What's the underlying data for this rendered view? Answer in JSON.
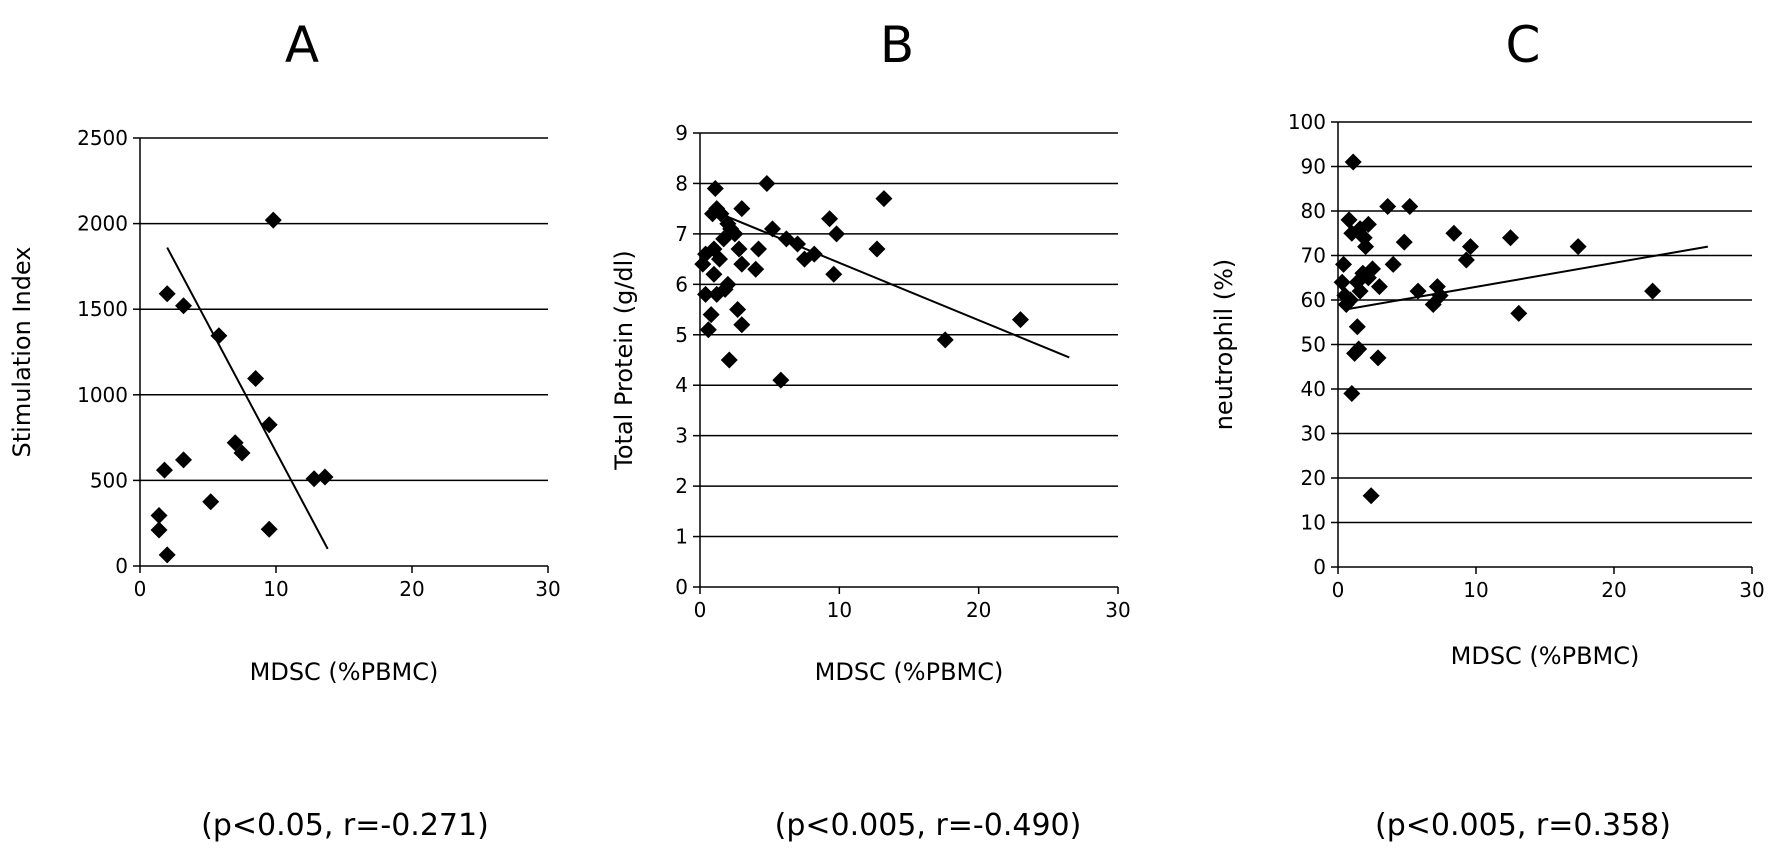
{
  "chart_data": [
    {
      "type": "scatter",
      "panel_label": "A",
      "xlabel": "MDSC (%PBMC)",
      "ylabel": "Stimulation Index",
      "xlim": [
        0,
        30
      ],
      "ylim": [
        0,
        2500
      ],
      "xticks": [
        0,
        10,
        20,
        30
      ],
      "yticks": [
        0,
        500,
        1000,
        1500,
        2000,
        2500
      ],
      "grid": "horizontal",
      "legend": "none",
      "marker": "diamond",
      "stat": "(p<0.05, r=-0.271)",
      "points": [
        {
          "x": 9.8,
          "y": 2020
        },
        {
          "x": 2.0,
          "y": 1590
        },
        {
          "x": 3.2,
          "y": 1520
        },
        {
          "x": 5.8,
          "y": 1345
        },
        {
          "x": 8.5,
          "y": 1095
        },
        {
          "x": 9.5,
          "y": 825
        },
        {
          "x": 7.0,
          "y": 720
        },
        {
          "x": 7.5,
          "y": 660
        },
        {
          "x": 3.2,
          "y": 620
        },
        {
          "x": 1.8,
          "y": 560
        },
        {
          "x": 12.8,
          "y": 510
        },
        {
          "x": 13.6,
          "y": 520
        },
        {
          "x": 5.2,
          "y": 375
        },
        {
          "x": 1.4,
          "y": 295
        },
        {
          "x": 9.5,
          "y": 215
        },
        {
          "x": 1.4,
          "y": 210
        },
        {
          "x": 2.0,
          "y": 65
        }
      ],
      "trendline": {
        "x": [
          2.0,
          13.8
        ],
        "y": [
          1860,
          100
        ]
      }
    },
    {
      "type": "scatter",
      "panel_label": "B",
      "xlabel": "MDSC (%PBMC)",
      "ylabel": "Total Protein (g/dl)",
      "xlim": [
        0,
        30
      ],
      "ylim": [
        0,
        9
      ],
      "xticks": [
        0,
        10,
        20,
        30
      ],
      "yticks": [
        0,
        1,
        2,
        3,
        4,
        5,
        6,
        7,
        8,
        9
      ],
      "grid": "horizontal",
      "legend": "none",
      "marker": "diamond",
      "stat": "(p<0.005, r=-0.490)",
      "points": [
        {
          "x": 4.8,
          "y": 8.0
        },
        {
          "x": 1.1,
          "y": 7.9
        },
        {
          "x": 13.2,
          "y": 7.7
        },
        {
          "x": 3.0,
          "y": 7.5
        },
        {
          "x": 1.2,
          "y": 7.5
        },
        {
          "x": 0.9,
          "y": 7.4
        },
        {
          "x": 1.5,
          "y": 7.4
        },
        {
          "x": 9.3,
          "y": 7.3
        },
        {
          "x": 2.0,
          "y": 7.2
        },
        {
          "x": 5.2,
          "y": 7.1
        },
        {
          "x": 2.2,
          "y": 7.1
        },
        {
          "x": 9.8,
          "y": 7.0
        },
        {
          "x": 2.5,
          "y": 7.0
        },
        {
          "x": 1.7,
          "y": 6.9
        },
        {
          "x": 6.2,
          "y": 6.9
        },
        {
          "x": 7.0,
          "y": 6.8
        },
        {
          "x": 4.2,
          "y": 6.7
        },
        {
          "x": 12.7,
          "y": 6.7
        },
        {
          "x": 1.0,
          "y": 6.7
        },
        {
          "x": 2.8,
          "y": 6.7
        },
        {
          "x": 8.2,
          "y": 6.6
        },
        {
          "x": 0.4,
          "y": 6.6
        },
        {
          "x": 7.5,
          "y": 6.5
        },
        {
          "x": 1.4,
          "y": 6.5
        },
        {
          "x": 0.2,
          "y": 6.4
        },
        {
          "x": 3.0,
          "y": 6.4
        },
        {
          "x": 4.0,
          "y": 6.3
        },
        {
          "x": 1.0,
          "y": 6.2
        },
        {
          "x": 9.6,
          "y": 6.2
        },
        {
          "x": 2.0,
          "y": 6.0
        },
        {
          "x": 1.8,
          "y": 5.9
        },
        {
          "x": 1.2,
          "y": 5.8
        },
        {
          "x": 0.4,
          "y": 5.8
        },
        {
          "x": 2.7,
          "y": 5.5
        },
        {
          "x": 0.8,
          "y": 5.4
        },
        {
          "x": 23.0,
          "y": 5.3
        },
        {
          "x": 3.0,
          "y": 5.2
        },
        {
          "x": 0.6,
          "y": 5.1
        },
        {
          "x": 17.6,
          "y": 4.9
        },
        {
          "x": 2.1,
          "y": 4.5
        },
        {
          "x": 5.8,
          "y": 4.1
        }
      ],
      "trendline": {
        "x": [
          1.0,
          26.5
        ],
        "y": [
          7.45,
          4.55
        ]
      }
    },
    {
      "type": "scatter",
      "panel_label": "C",
      "xlabel": "MDSC (%PBMC)",
      "ylabel": "neutrophil (%)",
      "xlim": [
        0,
        30
      ],
      "ylim": [
        0,
        100
      ],
      "xticks": [
        0,
        10,
        20,
        30
      ],
      "yticks": [
        0,
        10,
        20,
        30,
        40,
        50,
        60,
        70,
        80,
        90,
        100
      ],
      "grid": "horizontal",
      "legend": "none",
      "marker": "diamond",
      "stat": "(p<0.005, r=0.358)",
      "points": [
        {
          "x": 1.1,
          "y": 91
        },
        {
          "x": 3.6,
          "y": 81
        },
        {
          "x": 5.2,
          "y": 81
        },
        {
          "x": 0.8,
          "y": 78
        },
        {
          "x": 2.2,
          "y": 77
        },
        {
          "x": 1.6,
          "y": 76
        },
        {
          "x": 1.0,
          "y": 75
        },
        {
          "x": 8.4,
          "y": 75
        },
        {
          "x": 1.9,
          "y": 74
        },
        {
          "x": 12.5,
          "y": 74
        },
        {
          "x": 4.8,
          "y": 73
        },
        {
          "x": 2.0,
          "y": 72
        },
        {
          "x": 9.6,
          "y": 72
        },
        {
          "x": 17.4,
          "y": 72
        },
        {
          "x": 9.3,
          "y": 69
        },
        {
          "x": 0.4,
          "y": 68
        },
        {
          "x": 4.0,
          "y": 68
        },
        {
          "x": 2.5,
          "y": 67
        },
        {
          "x": 1.8,
          "y": 66
        },
        {
          "x": 2.2,
          "y": 65
        },
        {
          "x": 1.4,
          "y": 64
        },
        {
          "x": 0.3,
          "y": 64
        },
        {
          "x": 3.0,
          "y": 63
        },
        {
          "x": 7.2,
          "y": 63
        },
        {
          "x": 5.8,
          "y": 62
        },
        {
          "x": 22.8,
          "y": 62
        },
        {
          "x": 1.6,
          "y": 62
        },
        {
          "x": 0.5,
          "y": 61
        },
        {
          "x": 7.4,
          "y": 61
        },
        {
          "x": 0.9,
          "y": 60
        },
        {
          "x": 0.6,
          "y": 59
        },
        {
          "x": 6.9,
          "y": 59
        },
        {
          "x": 13.1,
          "y": 57
        },
        {
          "x": 1.4,
          "y": 54
        },
        {
          "x": 1.5,
          "y": 49
        },
        {
          "x": 1.2,
          "y": 48
        },
        {
          "x": 2.9,
          "y": 47
        },
        {
          "x": 1.0,
          "y": 39
        },
        {
          "x": 2.4,
          "y": 16
        }
      ],
      "trendline": {
        "x": [
          0.8,
          26.8
        ],
        "y": [
          58,
          72
        ]
      }
    }
  ]
}
